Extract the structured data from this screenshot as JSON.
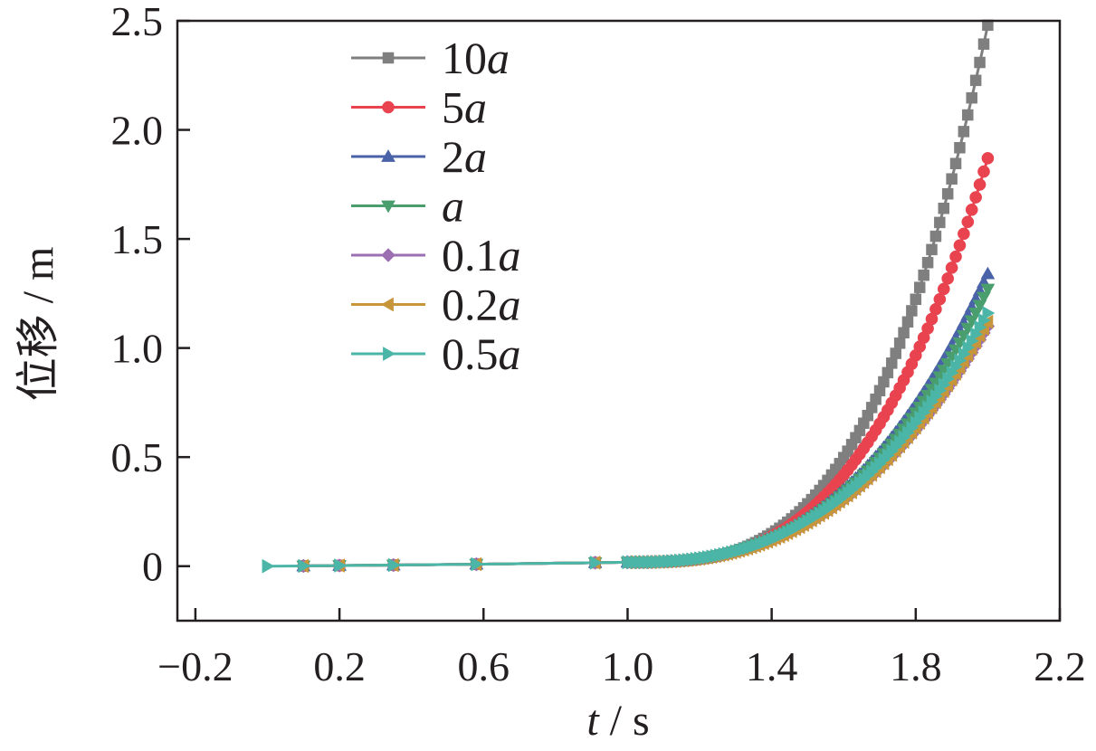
{
  "chart_data": {
    "type": "line",
    "title": "",
    "xlabel_var": "t",
    "xlabel_unit": " / s",
    "ylabel_text": "位移",
    "ylabel_unit": " / m",
    "xlim": [
      -0.25,
      2.2
    ],
    "ylim": [
      -0.25,
      2.5
    ],
    "x_ticks": [
      -0.2,
      0.2,
      0.6,
      1.0,
      1.4,
      1.8,
      2.2
    ],
    "x_tick_labels": [
      "−0.2",
      "0.2",
      "0.6",
      "1.0",
      "1.4",
      "1.8",
      "2.2"
    ],
    "y_ticks": [
      0,
      0.5,
      1.0,
      1.5,
      2.0,
      2.5
    ],
    "y_tick_labels": [
      "0",
      "0.5",
      "1.0",
      "1.5",
      "2.0",
      "2.5"
    ],
    "grid": false,
    "legend_position": "top-left",
    "common_early_points": {
      "x": [
        0,
        0.1,
        0.2,
        0.35,
        0.58,
        0.91,
        1.0
      ],
      "y": [
        0,
        0.001,
        0.003,
        0.005,
        0.009,
        0.016,
        0.018
      ]
    },
    "late_phase": {
      "x_start": 1.0,
      "x_end": 2.0,
      "y_start": 0.018
    },
    "series": [
      {
        "name_num": "10",
        "name_var": "a",
        "color": "#7f7f7f",
        "marker": "square",
        "y_end": 2.48,
        "curve_power": 3.2,
        "x_start": 0.1
      },
      {
        "name_num": "5",
        "name_var": "a",
        "color": "#e8434f",
        "marker": "circle",
        "y_end": 1.87,
        "curve_power": 3.0,
        "x_start": 0.1
      },
      {
        "name_num": "2",
        "name_var": "a",
        "color": "#4a63a8",
        "marker": "triangle-up",
        "y_end": 1.34,
        "curve_power": 2.7,
        "x_start": 0.1
      },
      {
        "name_num": "",
        "name_var": "a",
        "color": "#4a9e6e",
        "marker": "triangle-down",
        "y_end": 1.27,
        "curve_power": 2.7,
        "x_start": 0.1
      },
      {
        "name_num": "0.1",
        "name_var": "a",
        "color": "#9b6fb2",
        "marker": "diamond",
        "y_end": 1.1,
        "curve_power": 2.6,
        "x_start": 0.1
      },
      {
        "name_num": "0.2",
        "name_var": "a",
        "color": "#c8963a",
        "marker": "triangle-left",
        "y_end": 1.12,
        "curve_power": 2.6,
        "x_start": 0.1
      },
      {
        "name_num": "0.5",
        "name_var": "a",
        "color": "#4bb5a8",
        "marker": "triangle-right",
        "y_end": 1.16,
        "curve_power": 2.6,
        "x_start": 0
      }
    ]
  }
}
